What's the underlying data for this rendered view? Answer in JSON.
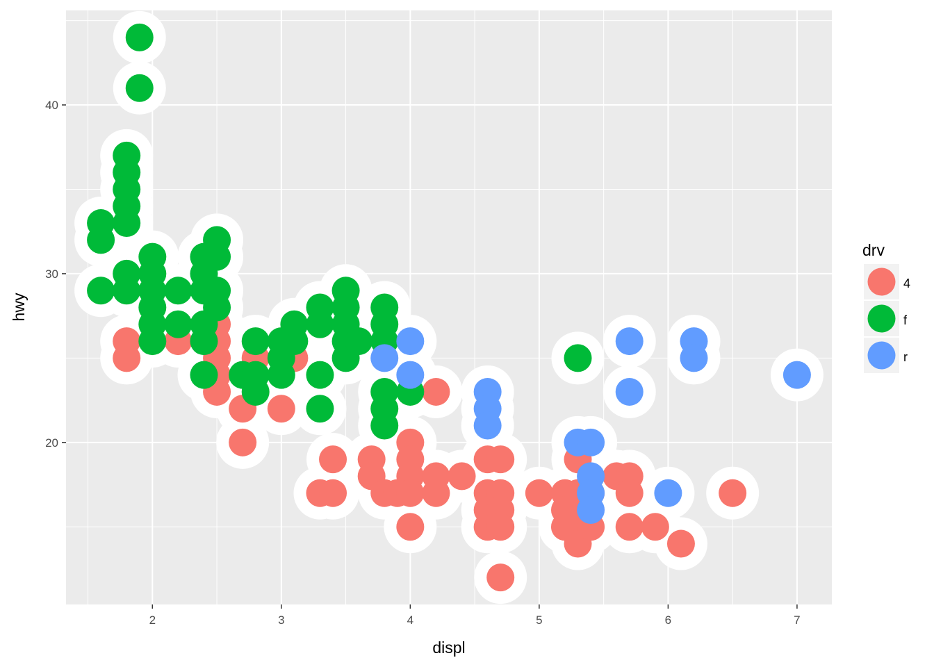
{
  "chart_data": {
    "type": "scatter",
    "title": "",
    "xlabel": "displ",
    "ylabel": "hwy",
    "xlim": [
      1.33,
      7.27
    ],
    "ylim": [
      10.4,
      45.6
    ],
    "xticks": [
      2,
      3,
      4,
      5,
      6,
      7
    ],
    "yticks": [
      20,
      30,
      40
    ],
    "x_tick_labels": [
      "2",
      "3",
      "4",
      "5",
      "6",
      "7"
    ],
    "y_tick_labels": [
      "20",
      "30",
      "40"
    ],
    "grid": true,
    "panel_background": "#ebebeb",
    "highlight_color": "#ffffff",
    "legend": {
      "title": "drv",
      "placement": "right",
      "entries": [
        {
          "label": "4",
          "color": "#F8766D"
        },
        {
          "label": "f",
          "color": "#00BA38"
        },
        {
          "label": "r",
          "color": "#619CFF"
        }
      ]
    },
    "series": [
      {
        "name": "4",
        "color": "#F8766D",
        "points": [
          [
            1.8,
            26
          ],
          [
            1.8,
            25
          ],
          [
            2.2,
            26
          ],
          [
            2.5,
            27
          ],
          [
            2.5,
            26
          ],
          [
            2.5,
            25
          ],
          [
            2.5,
            24
          ],
          [
            2.5,
            23
          ],
          [
            2.7,
            22
          ],
          [
            2.7,
            20
          ],
          [
            2.8,
            25
          ],
          [
            3.0,
            22
          ],
          [
            3.1,
            25
          ],
          [
            3.3,
            17
          ],
          [
            3.4,
            17
          ],
          [
            3.4,
            19
          ],
          [
            3.7,
            19
          ],
          [
            3.7,
            18
          ],
          [
            3.8,
            17
          ],
          [
            3.9,
            17
          ],
          [
            4.0,
            20
          ],
          [
            4.0,
            19
          ],
          [
            4.0,
            18
          ],
          [
            4.0,
            17
          ],
          [
            4.0,
            15
          ],
          [
            4.2,
            23
          ],
          [
            4.2,
            18
          ],
          [
            4.2,
            17
          ],
          [
            4.4,
            18
          ],
          [
            4.6,
            19
          ],
          [
            4.6,
            17
          ],
          [
            4.6,
            16
          ],
          [
            4.6,
            15
          ],
          [
            4.7,
            19
          ],
          [
            4.7,
            17
          ],
          [
            4.7,
            16
          ],
          [
            4.7,
            15
          ],
          [
            4.7,
            12
          ],
          [
            5.0,
            17
          ],
          [
            5.2,
            17
          ],
          [
            5.2,
            16
          ],
          [
            5.2,
            15
          ],
          [
            5.3,
            19
          ],
          [
            5.3,
            17
          ],
          [
            5.3,
            15
          ],
          [
            5.3,
            14
          ],
          [
            5.4,
            17
          ],
          [
            5.4,
            15
          ],
          [
            5.6,
            18
          ],
          [
            5.7,
            18
          ],
          [
            5.7,
            17
          ],
          [
            5.7,
            15
          ],
          [
            5.9,
            15
          ],
          [
            6.1,
            14
          ],
          [
            6.5,
            17
          ]
        ]
      },
      {
        "name": "f",
        "color": "#00BA38",
        "points": [
          [
            1.6,
            33
          ],
          [
            1.6,
            32
          ],
          [
            1.6,
            29
          ],
          [
            1.8,
            37
          ],
          [
            1.8,
            36
          ],
          [
            1.8,
            35
          ],
          [
            1.8,
            34
          ],
          [
            1.8,
            33
          ],
          [
            1.8,
            30
          ],
          [
            1.8,
            29
          ],
          [
            1.9,
            44
          ],
          [
            1.9,
            41
          ],
          [
            2.0,
            31
          ],
          [
            2.0,
            30
          ],
          [
            2.0,
            29
          ],
          [
            2.0,
            28
          ],
          [
            2.0,
            27
          ],
          [
            2.0,
            26
          ],
          [
            2.2,
            29
          ],
          [
            2.2,
            27
          ],
          [
            2.4,
            31
          ],
          [
            2.4,
            30
          ],
          [
            2.4,
            29
          ],
          [
            2.4,
            27
          ],
          [
            2.4,
            26
          ],
          [
            2.4,
            24
          ],
          [
            2.5,
            32
          ],
          [
            2.5,
            31
          ],
          [
            2.5,
            29
          ],
          [
            2.5,
            28
          ],
          [
            2.7,
            24
          ],
          [
            2.8,
            26
          ],
          [
            2.8,
            24
          ],
          [
            2.8,
            23
          ],
          [
            3.0,
            26
          ],
          [
            3.0,
            25
          ],
          [
            3.0,
            24
          ],
          [
            3.1,
            27
          ],
          [
            3.1,
            26
          ],
          [
            3.3,
            28
          ],
          [
            3.3,
            27
          ],
          [
            3.3,
            24
          ],
          [
            3.3,
            22
          ],
          [
            3.5,
            29
          ],
          [
            3.5,
            28
          ],
          [
            3.5,
            27
          ],
          [
            3.5,
            26
          ],
          [
            3.5,
            25
          ],
          [
            3.6,
            26
          ],
          [
            3.8,
            28
          ],
          [
            3.8,
            27
          ],
          [
            3.8,
            26
          ],
          [
            3.8,
            23
          ],
          [
            3.8,
            22
          ],
          [
            3.8,
            21
          ],
          [
            4.0,
            23
          ],
          [
            5.3,
            25
          ]
        ]
      },
      {
        "name": "r",
        "color": "#619CFF",
        "points": [
          [
            3.8,
            25
          ],
          [
            4.0,
            26
          ],
          [
            4.0,
            24
          ],
          [
            4.6,
            23
          ],
          [
            4.6,
            22
          ],
          [
            4.6,
            21
          ],
          [
            5.3,
            20
          ],
          [
            5.4,
            20
          ],
          [
            5.4,
            18
          ],
          [
            5.4,
            17
          ],
          [
            5.4,
            16
          ],
          [
            5.7,
            26
          ],
          [
            5.7,
            23
          ],
          [
            6.0,
            17
          ],
          [
            6.2,
            26
          ],
          [
            6.2,
            25
          ],
          [
            7.0,
            24
          ]
        ]
      }
    ]
  }
}
